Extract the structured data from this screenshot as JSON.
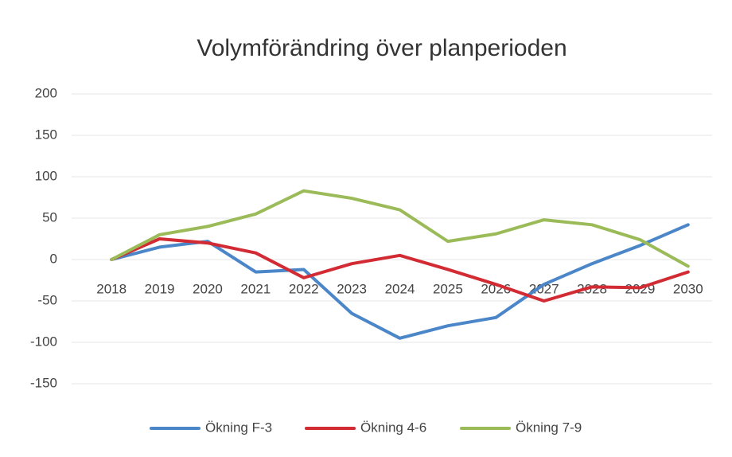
{
  "chart_data": {
    "type": "line",
    "title": "Volymförändring över planperioden",
    "categories": [
      "2018",
      "2019",
      "2020",
      "2021",
      "2022",
      "2023",
      "2024",
      "2025",
      "2026",
      "2027",
      "2028",
      "2029",
      "2030"
    ],
    "series": [
      {
        "name": "Ökning F-3",
        "color": "#4a86c8",
        "values": [
          0,
          15,
          22,
          -15,
          -12,
          -65,
          -95,
          -80,
          -70,
          -30,
          -5,
          17,
          42
        ]
      },
      {
        "name": "Ökning 4-6",
        "color": "#d22b33",
        "values": [
          0,
          25,
          20,
          8,
          -22,
          -5,
          5,
          -12,
          -30,
          -50,
          -33,
          -34,
          -15
        ]
      },
      {
        "name": "Ökning 7-9",
        "color": "#9bbb59",
        "values": [
          0,
          30,
          40,
          55,
          83,
          74,
          60,
          22,
          31,
          48,
          42,
          24,
          -8
        ]
      }
    ],
    "ylim": [
      -150,
      200
    ],
    "yticks": [
      -150,
      -100,
      -50,
      0,
      50,
      100,
      150,
      200
    ],
    "grid": true,
    "legend": "bottom"
  }
}
